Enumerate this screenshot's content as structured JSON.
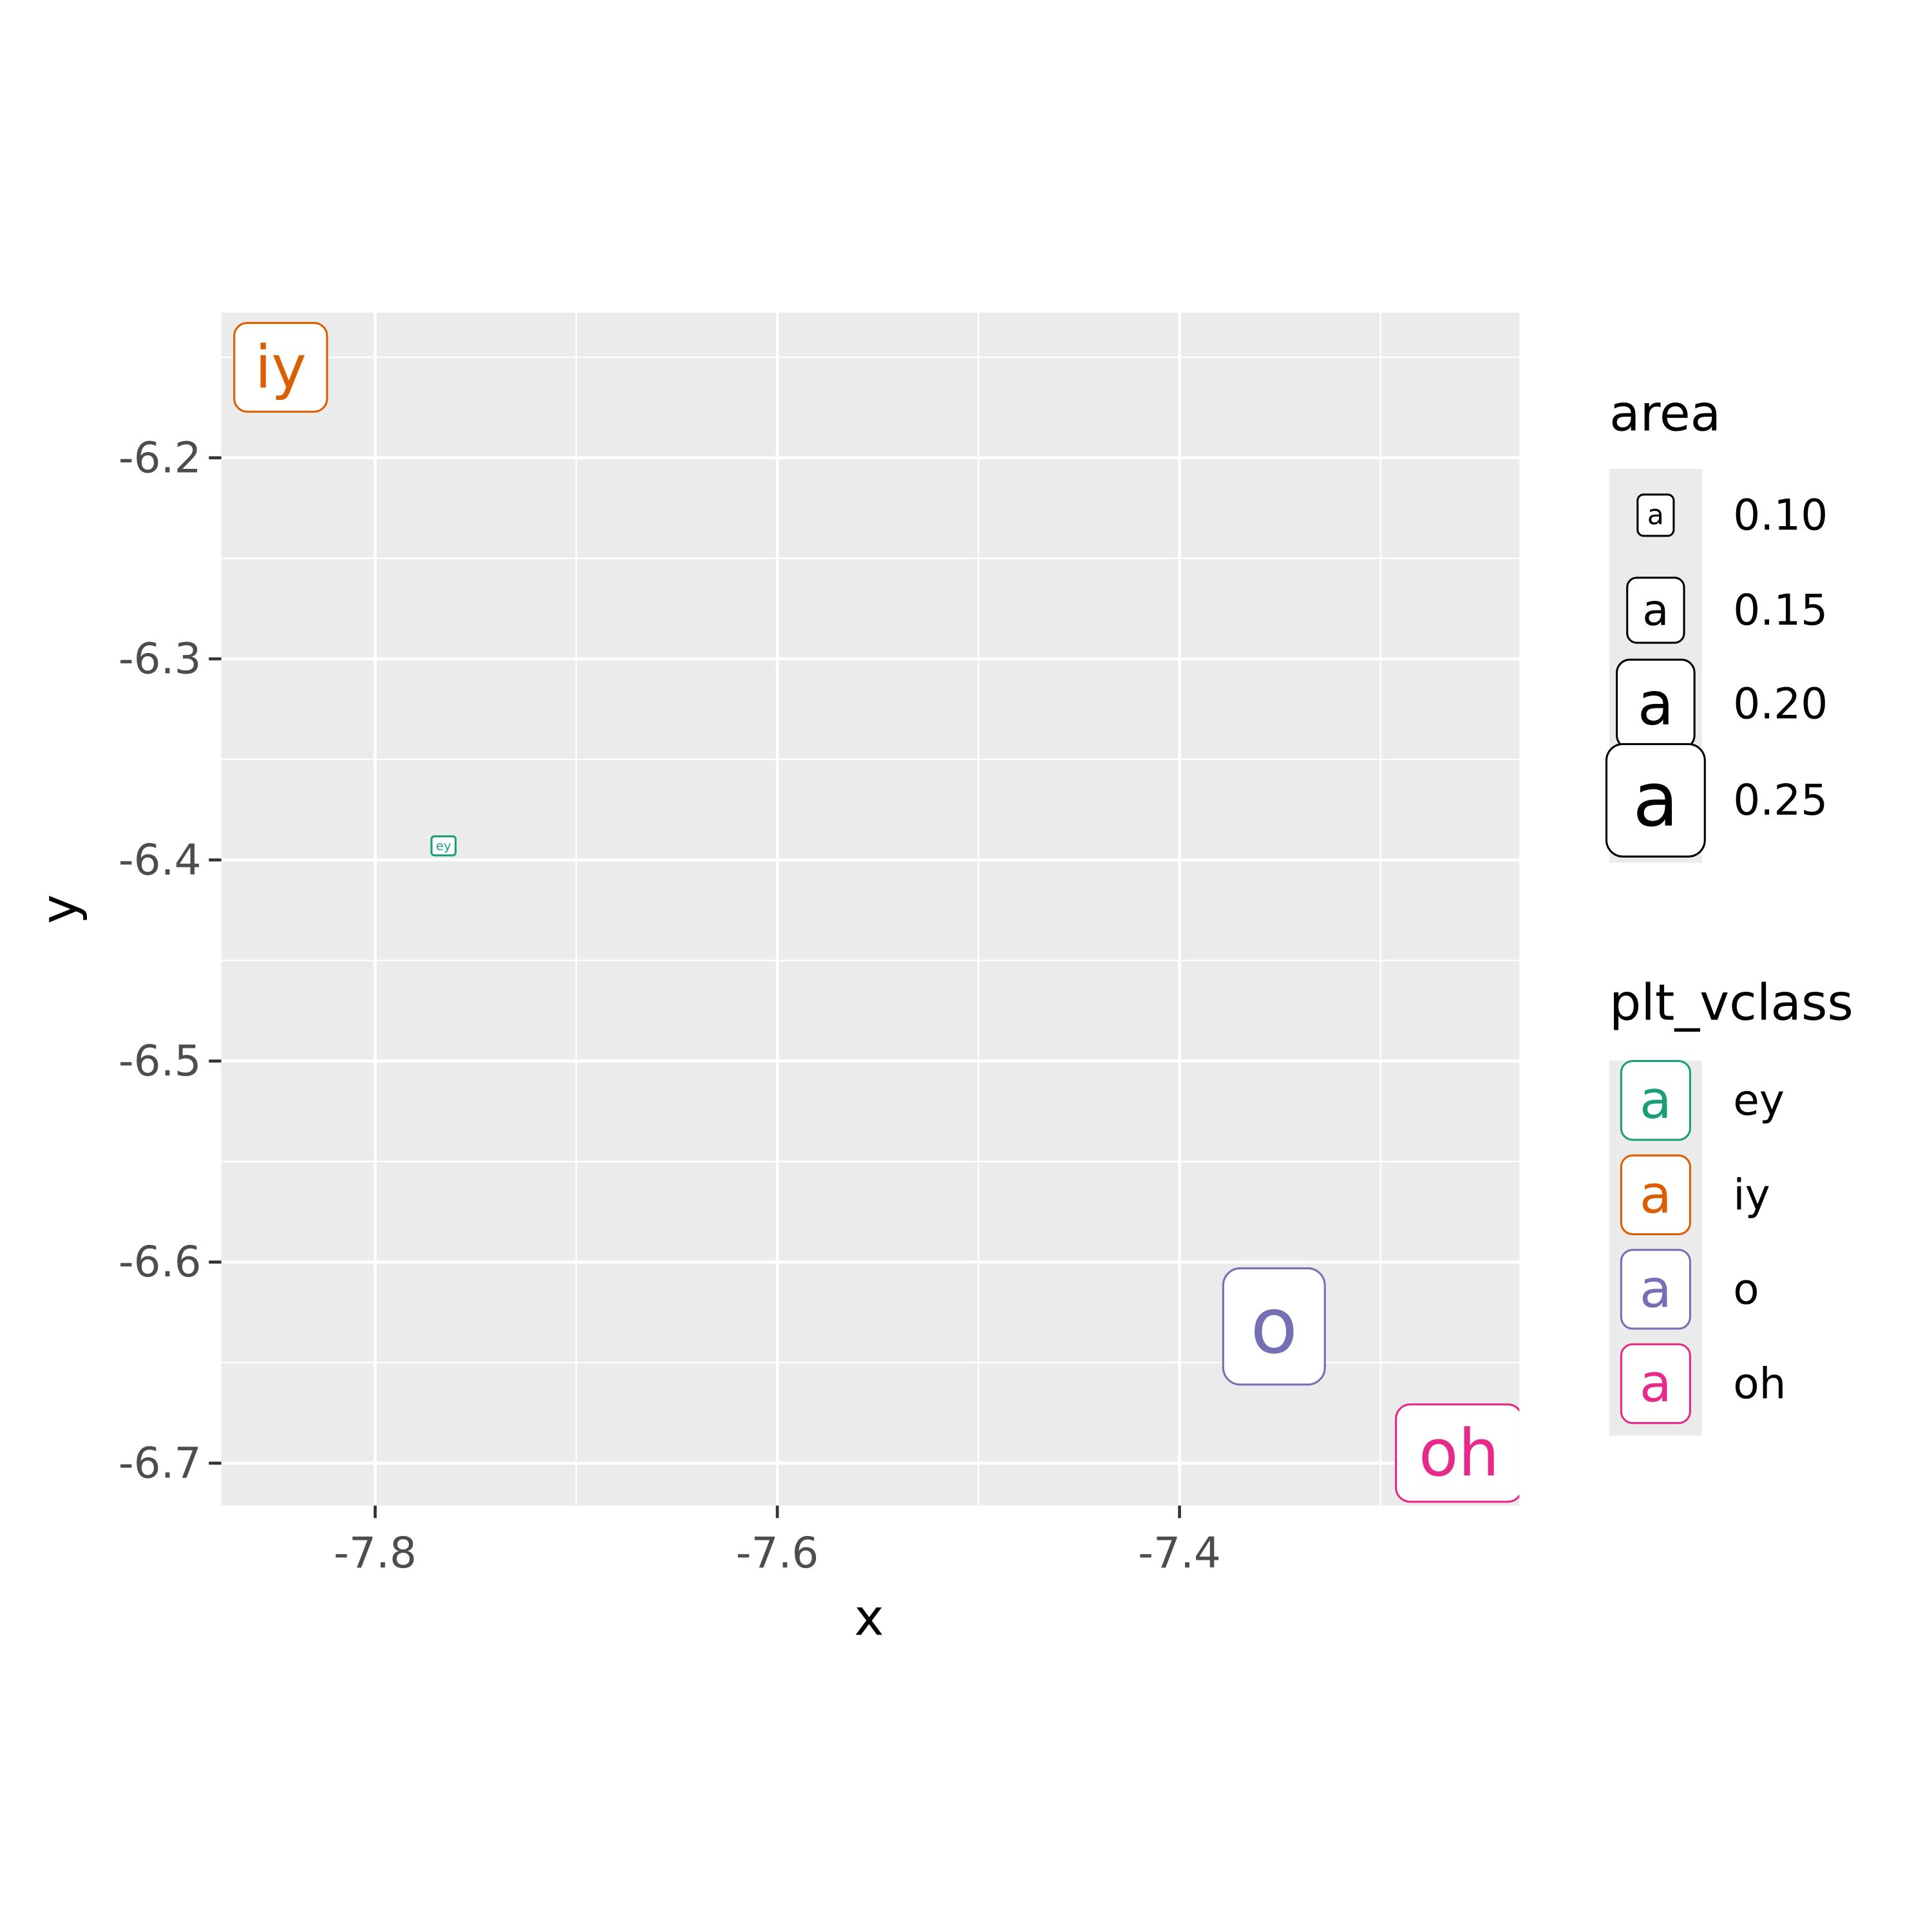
{
  "chart_data": {
    "type": "label",
    "x_label": "x",
    "y_label": "y",
    "xlim": [
      -7.8765,
      -7.231
    ],
    "ylim": [
      -6.7211,
      -6.1278
    ],
    "xticks": [
      -7.8,
      -7.6,
      -7.4
    ],
    "yticks": [
      -6.2,
      -6.3,
      -6.4,
      -6.5,
      -6.6,
      -6.7
    ],
    "x_minor_breaks": [
      -7.7,
      -7.5,
      -7.3
    ],
    "y_minor_breaks": [
      -6.15,
      -6.25,
      -6.35,
      -6.45,
      -6.55,
      -6.65
    ],
    "grid": true,
    "series": [
      {
        "name": "ey",
        "color": "#1b9e77",
        "x": [
          -7.766
        ],
        "values": [
          -6.393
        ],
        "size": [
          0.053
        ]
      },
      {
        "name": "iy",
        "color": "#d95f02",
        "x": [
          -7.847
        ],
        "values": [
          -6.155
        ],
        "size": [
          0.2
        ]
      },
      {
        "name": "o",
        "color": "#7570b3",
        "x": [
          -7.353
        ],
        "values": [
          -6.632
        ],
        "size": [
          0.258
        ]
      },
      {
        "name": "oh",
        "color": "#e7298a",
        "x": [
          -7.261
        ],
        "values": [
          -6.695
        ],
        "size": [
          0.218
        ]
      }
    ],
    "size_legend": {
      "title": "area",
      "breaks": [
        {
          "value": 0.1,
          "label": "0.10"
        },
        {
          "value": 0.15,
          "label": "0.15"
        },
        {
          "value": 0.2,
          "label": "0.20"
        },
        {
          "value": 0.25,
          "label": "0.25"
        }
      ]
    },
    "color_legend": {
      "title": "plt_vclass"
    },
    "key_glyph": "a"
  }
}
